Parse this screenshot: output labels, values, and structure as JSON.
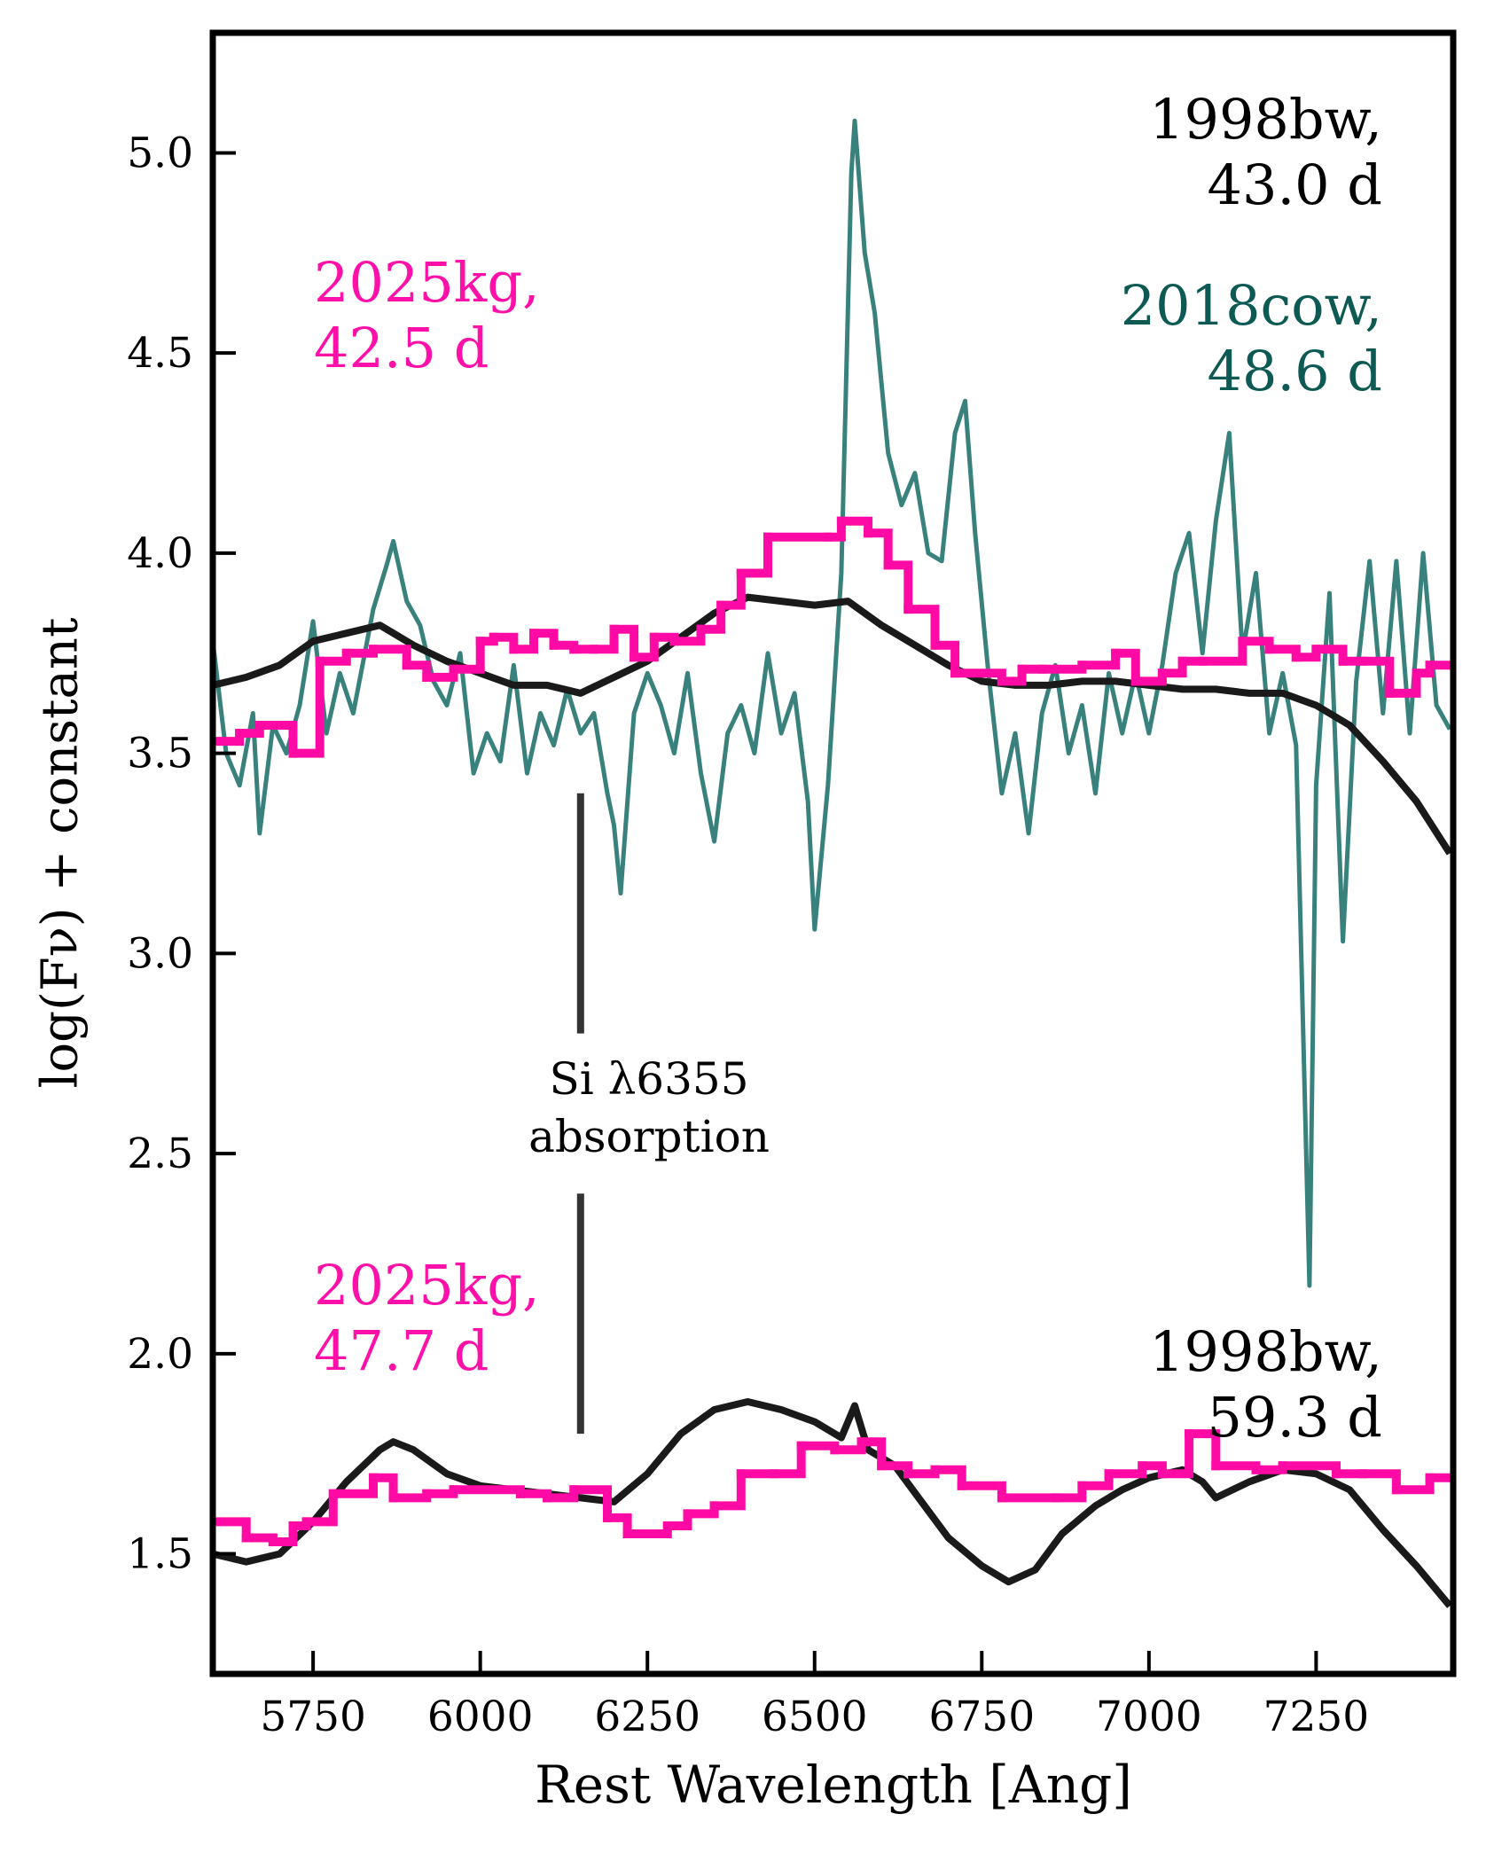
{
  "chart_data": {
    "type": "line",
    "xlabel": "Rest Wavelength [Ang]",
    "ylabel": "log(Fν) + constant",
    "xlim": [
      5600,
      7455
    ],
    "ylim": [
      1.2,
      5.3
    ],
    "xticks": [
      5750,
      6000,
      6250,
      6500,
      6750,
      7000,
      7250
    ],
    "yticks": [
      1.5,
      {
        "value": 2,
        "label": "2.0"
      },
      2.5,
      {
        "value": 3,
        "label": "3.0"
      },
      3.5,
      {
        "value": 4,
        "label": "4.0"
      },
      4.5,
      {
        "value": 5,
        "label": "5.0"
      }
    ],
    "series": [
      {
        "color": "#2e7a76",
        "step": false,
        "x": [
          5600,
          5620,
          5640,
          5660,
          5670,
          5690,
          5710,
          5730,
          5750,
          5770,
          5790,
          5810,
          5840,
          5860,
          5870,
          5890,
          5910,
          5930,
          5950,
          5970,
          5990,
          6010,
          6030,
          6050,
          6070,
          6090,
          6110,
          6130,
          6150,
          6170,
          6190,
          6200,
          6210,
          6230,
          6250,
          6270,
          6290,
          6310,
          6330,
          6350,
          6370,
          6390,
          6410,
          6430,
          6450,
          6470,
          6490,
          6500,
          6520,
          6540,
          6555,
          6560,
          6575,
          6590,
          6610,
          6630,
          6650,
          6670,
          6690,
          6710,
          6725,
          6740,
          6760,
          6780,
          6800,
          6820,
          6840,
          6860,
          6880,
          6900,
          6920,
          6940,
          6960,
          6980,
          7000,
          7020,
          7040,
          7060,
          7080,
          7100,
          7120,
          7140,
          7160,
          7180,
          7200,
          7220,
          7240,
          7250,
          7270,
          7290,
          7310,
          7330,
          7350,
          7370,
          7390,
          7410,
          7430,
          7450
        ],
        "values": [
          3.78,
          3.5,
          3.42,
          3.6,
          3.3,
          3.57,
          3.5,
          3.62,
          3.83,
          3.55,
          3.7,
          3.6,
          3.86,
          3.97,
          4.03,
          3.88,
          3.82,
          3.68,
          3.62,
          3.75,
          3.45,
          3.55,
          3.48,
          3.72,
          3.45,
          3.6,
          3.52,
          3.66,
          3.55,
          3.6,
          3.4,
          3.32,
          3.15,
          3.6,
          3.7,
          3.62,
          3.5,
          3.7,
          3.45,
          3.28,
          3.55,
          3.62,
          3.5,
          3.75,
          3.55,
          3.65,
          3.38,
          3.06,
          3.42,
          3.95,
          4.95,
          5.08,
          4.75,
          4.6,
          4.25,
          4.12,
          4.2,
          4.0,
          3.98,
          4.3,
          4.38,
          4.05,
          3.7,
          3.4,
          3.55,
          3.3,
          3.6,
          3.72,
          3.5,
          3.62,
          3.4,
          3.7,
          3.55,
          3.7,
          3.55,
          3.72,
          3.95,
          4.05,
          3.75,
          4.08,
          4.3,
          3.75,
          3.95,
          3.55,
          3.7,
          3.52,
          2.17,
          3.42,
          3.9,
          3.03,
          3.68,
          3.98,
          3.6,
          3.98,
          3.55,
          4.0,
          3.62,
          3.56
        ]
      },
      {
        "color": "#1a1a1a",
        "step": false,
        "x": [
          5600,
          5650,
          5700,
          5750,
          5800,
          5850,
          5900,
          5950,
          6000,
          6050,
          6100,
          6150,
          6200,
          6250,
          6300,
          6350,
          6400,
          6450,
          6500,
          6550,
          6600,
          6650,
          6700,
          6750,
          6800,
          6850,
          6900,
          6950,
          7000,
          7050,
          7100,
          7150,
          7200,
          7250,
          7300,
          7350,
          7400,
          7450
        ],
        "values": [
          3.67,
          3.69,
          3.72,
          3.78,
          3.8,
          3.82,
          3.77,
          3.73,
          3.7,
          3.67,
          3.67,
          3.65,
          3.69,
          3.73,
          3.79,
          3.85,
          3.89,
          3.88,
          3.87,
          3.88,
          3.82,
          3.77,
          3.72,
          3.68,
          3.67,
          3.67,
          3.68,
          3.68,
          3.67,
          3.66,
          3.66,
          3.65,
          3.65,
          3.62,
          3.57,
          3.48,
          3.38,
          3.25
        ]
      },
      {
        "color": "#1a1a1a",
        "step": false,
        "x": [
          5600,
          5650,
          5700,
          5750,
          5800,
          5850,
          5870,
          5900,
          5950,
          6000,
          6050,
          6100,
          6150,
          6200,
          6250,
          6300,
          6350,
          6400,
          6450,
          6500,
          6540,
          6560,
          6580,
          6620,
          6660,
          6700,
          6750,
          6790,
          6830,
          6870,
          6920,
          6960,
          7000,
          7050,
          7080,
          7100,
          7150,
          7200,
          7250,
          7300,
          7350,
          7400,
          7450
        ],
        "values": [
          1.5,
          1.48,
          1.5,
          1.58,
          1.68,
          1.76,
          1.78,
          1.76,
          1.7,
          1.67,
          1.66,
          1.65,
          1.64,
          1.63,
          1.7,
          1.8,
          1.86,
          1.88,
          1.86,
          1.83,
          1.79,
          1.87,
          1.76,
          1.72,
          1.63,
          1.54,
          1.47,
          1.43,
          1.46,
          1.55,
          1.62,
          1.66,
          1.69,
          1.71,
          1.68,
          1.64,
          1.68,
          1.71,
          1.7,
          1.66,
          1.56,
          1.47,
          1.37
        ]
      },
      {
        "color": "#ff0aa5",
        "step": true,
        "x": [
          5600,
          5640,
          5670,
          5720,
          5760,
          5800,
          5840,
          5890,
          5920,
          5960,
          6000,
          6020,
          6050,
          6080,
          6110,
          6140,
          6170,
          6200,
          6230,
          6260,
          6290,
          6330,
          6360,
          6390,
          6430,
          6520,
          6540,
          6580,
          6610,
          6640,
          6680,
          6710,
          6780,
          6810,
          6840,
          6900,
          6950,
          6980,
          7020,
          7050,
          7080,
          7140,
          7180,
          7220,
          7250,
          7290,
          7320,
          7360,
          7400,
          7420
        ],
        "values": [
          3.53,
          3.55,
          3.57,
          3.5,
          3.73,
          3.75,
          3.76,
          3.72,
          3.69,
          3.71,
          3.78,
          3.79,
          3.76,
          3.8,
          3.77,
          3.76,
          3.76,
          3.81,
          3.74,
          3.79,
          3.78,
          3.81,
          3.87,
          3.95,
          4.04,
          4.04,
          4.08,
          4.05,
          3.97,
          3.86,
          3.77,
          3.7,
          3.68,
          3.71,
          3.71,
          3.72,
          3.75,
          3.68,
          3.7,
          3.73,
          3.73,
          3.78,
          3.76,
          3.74,
          3.76,
          3.73,
          3.73,
          3.65,
          3.7,
          3.72
        ]
      },
      {
        "color": "#ff0aa5",
        "step": true,
        "x": [
          5600,
          5650,
          5690,
          5720,
          5740,
          5780,
          5840,
          5870,
          5920,
          5960,
          6060,
          6100,
          6140,
          6190,
          6220,
          6280,
          6310,
          6350,
          6390,
          6440,
          6480,
          6530,
          6570,
          6600,
          6640,
          6680,
          6720,
          6780,
          6860,
          6900,
          6940,
          6990,
          7020,
          7060,
          7100,
          7160,
          7200,
          7280,
          7320,
          7370,
          7420
        ],
        "values": [
          1.58,
          1.54,
          1.53,
          1.57,
          1.58,
          1.65,
          1.69,
          1.64,
          1.65,
          1.66,
          1.65,
          1.64,
          1.66,
          1.59,
          1.55,
          1.57,
          1.6,
          1.62,
          1.7,
          1.7,
          1.77,
          1.76,
          1.78,
          1.72,
          1.7,
          1.71,
          1.67,
          1.64,
          1.64,
          1.67,
          1.7,
          1.72,
          1.7,
          1.8,
          1.72,
          1.71,
          1.72,
          1.7,
          1.7,
          1.66,
          1.69
        ]
      }
    ],
    "labels": [
      {
        "lines": [
          "1998bw,",
          "43.0 d"
        ],
        "color": "#000000"
      },
      {
        "lines": [
          "2025kg,",
          "42.5 d"
        ],
        "color": "#ff10a8"
      },
      {
        "lines": [
          "2018cow,",
          "48.6 d"
        ],
        "color": "#0d5a55"
      },
      {
        "lines": [
          "2025kg,",
          "47.7 d"
        ],
        "color": "#ff10a8"
      },
      {
        "lines": [
          "1998bw,",
          "59.3 d"
        ],
        "color": "#000000"
      }
    ],
    "marker": {
      "x": 6150,
      "segments": [
        [
          3.4,
          2.8
        ],
        [
          2.4,
          1.8
        ]
      ],
      "lines": [
        "Si λ6355",
        "absorption"
      ],
      "color": "#333333"
    }
  }
}
